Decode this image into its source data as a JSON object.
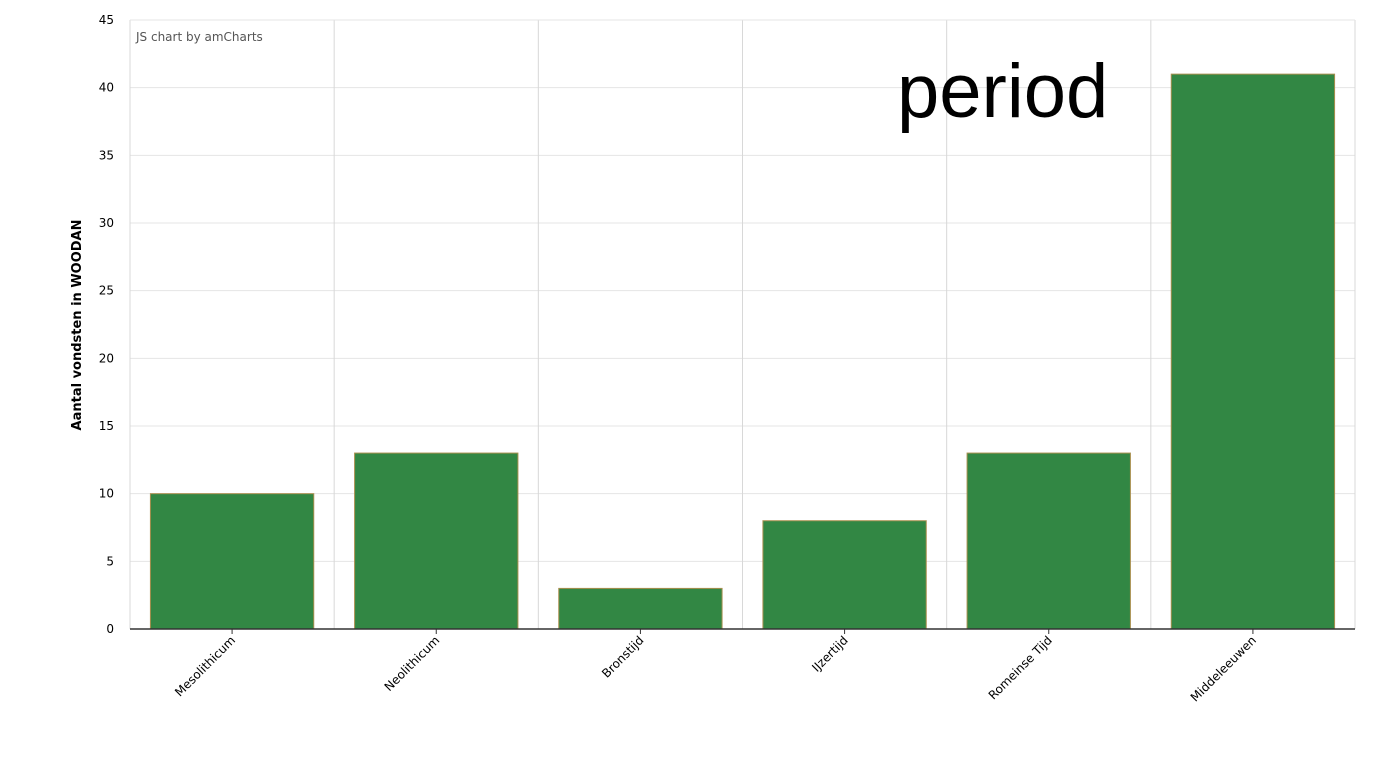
{
  "credit_text": "JS chart by amCharts",
  "overlay_text": "period",
  "chart_data": {
    "type": "bar",
    "categories": [
      "Mesolithicum",
      "Neolithicum",
      "Bronstijd",
      "IJzertijd",
      "Romeinse Tijd",
      "Middeleeuwen"
    ],
    "series": [
      {
        "values": [
          10,
          13,
          3,
          8,
          13,
          41
        ]
      }
    ],
    "xlabel": "",
    "ylabel": "Aantal vondsten in WOODAN",
    "ylim": [
      0,
      45
    ],
    "yticks": [
      "0",
      "5",
      "10",
      "15",
      "20",
      "25",
      "30",
      "35",
      "40",
      "45"
    ],
    "grid": true,
    "legend": "none",
    "colors": {
      "bar_fill": "#2e8540",
      "bar_stroke": "#a88f4e",
      "grid": "#e4e4e4",
      "vgrid": "#d8d8d8",
      "axis": "#333333"
    }
  }
}
